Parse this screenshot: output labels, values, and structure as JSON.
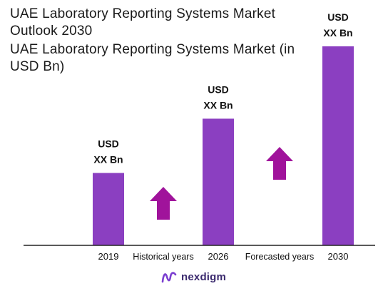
{
  "title": "UAE Laboratory Reporting Systems  Market Outlook 2030",
  "subtitle": "UAE Laboratory Reporting Systems  Market (in USD Bn)",
  "brand": {
    "name": "nexdigm",
    "logo_icon": "nexdigm-logo-icon"
  },
  "colors": {
    "bar": "#8B3FC1",
    "arrow": "#A0139B",
    "axis": "#222222"
  },
  "chart_data": {
    "type": "bar",
    "categories": [
      "2019",
      "2026",
      "2030"
    ],
    "values": [
      1.2,
      2.1,
      3.3
    ],
    "value_labels": [
      [
        "USD",
        "XX Bn"
      ],
      [
        "USD",
        "XX Bn"
      ],
      [
        "USD",
        "XX Bn"
      ]
    ],
    "period_labels": [
      "Historical years",
      "Forecasted years"
    ],
    "ylim": [
      0,
      3.5
    ],
    "grid": false,
    "legend": "none"
  }
}
